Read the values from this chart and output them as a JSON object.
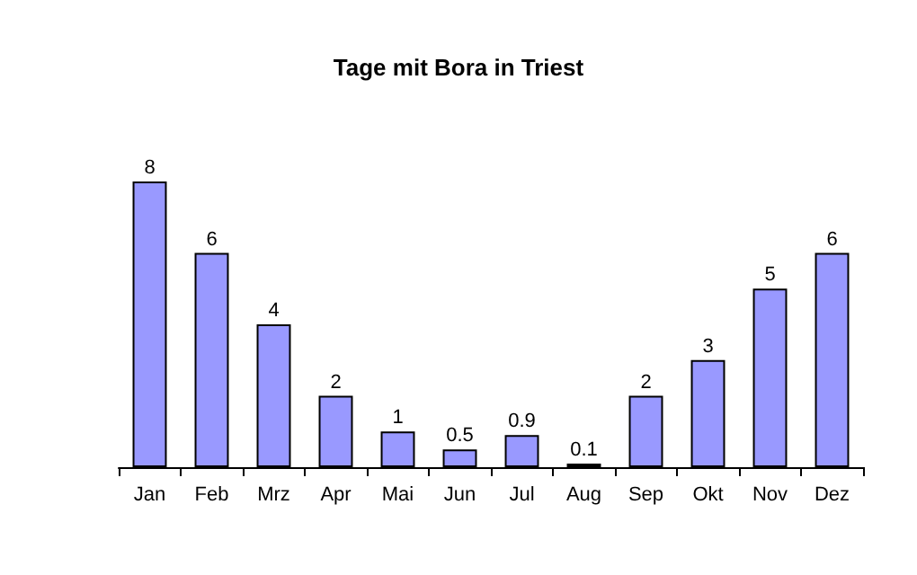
{
  "chart_data": {
    "type": "bar",
    "title": "Tage mit Bora in Triest",
    "categories": [
      "Jan",
      "Feb",
      "Mrz",
      "Apr",
      "Mai",
      "Jun",
      "Jul",
      "Aug",
      "Sep",
      "Okt",
      "Nov",
      "Dez"
    ],
    "values": [
      8,
      6,
      4,
      2,
      1,
      0.5,
      0.9,
      0.1,
      2,
      3,
      5,
      6
    ],
    "color": "#9999ff",
    "data_labels": true
  }
}
